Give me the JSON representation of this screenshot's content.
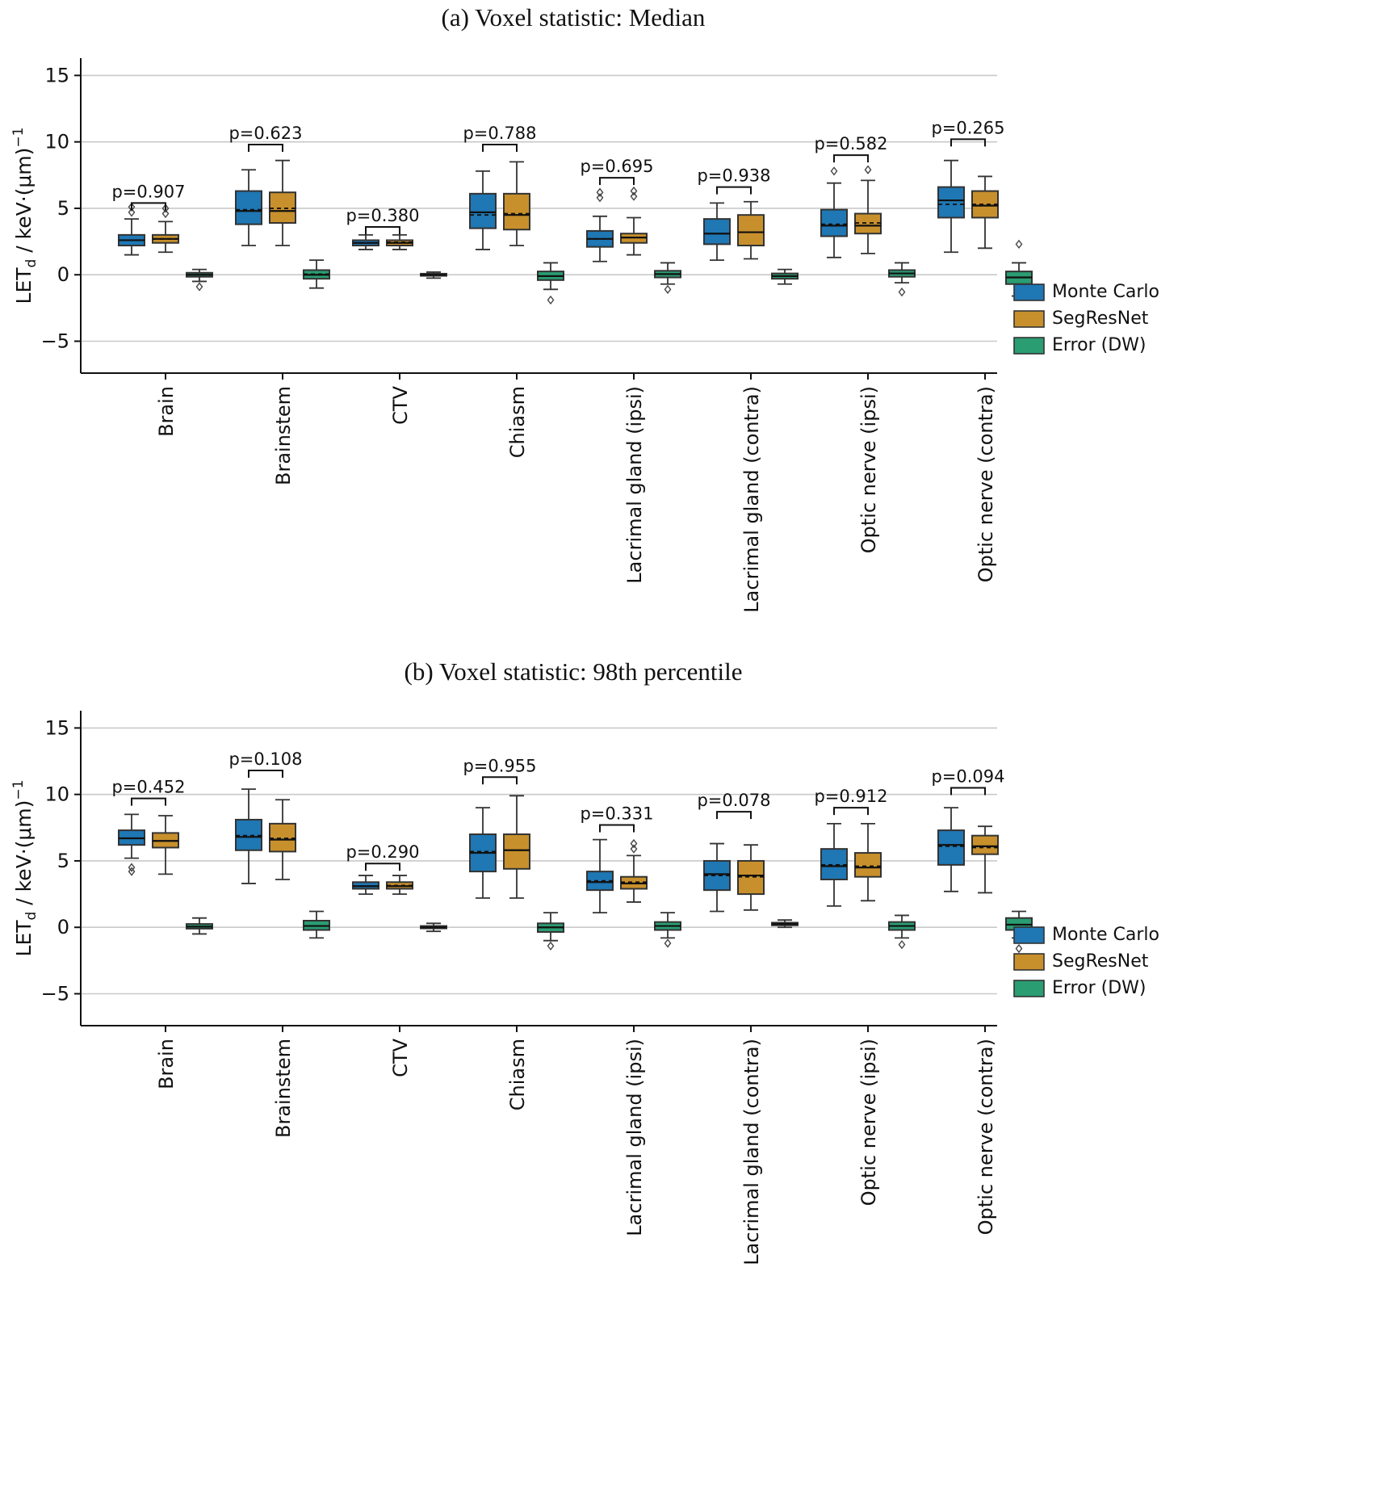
{
  "figure": {
    "background": "#ffffff"
  },
  "colors": {
    "monte_carlo": "#1f77b4",
    "segresnet": "#c8902c",
    "error_dw": "#2a9d72",
    "grid": "#c9c9c9",
    "box_edge": "#333333"
  },
  "chart_data": [
    {
      "type": "box",
      "panel": "a",
      "title": "(a) Voxel statistic: Median",
      "ylabel_parts": [
        {
          "t": "LET"
        },
        {
          "t": "d",
          "pos": "sub"
        },
        {
          "t": " / keV·(μm)"
        },
        {
          "t": "−1",
          "pos": "sup"
        }
      ],
      "ylim": [
        -7.4,
        16.3
      ],
      "yticks": [
        -5,
        0,
        5,
        10,
        15
      ],
      "grid": true,
      "legend_position": "right",
      "categories": [
        "Brain",
        "Brainstem",
        "CTV",
        "Chiasm",
        "Lacrimal gland (ipsi)",
        "Lacrimal gland (contra)",
        "Optic nerve (ipsi)",
        "Optic nerve (contra)"
      ],
      "series": [
        {
          "name": "Monte Carlo",
          "color": "#1f77b4",
          "boxes": [
            {
              "lo": 1.5,
              "q1": 2.2,
              "med": 2.6,
              "mean": 2.6,
              "q3": 3.0,
              "hi": 4.2,
              "fliers": [
                4.7,
                5.1
              ]
            },
            {
              "lo": 2.2,
              "q1": 3.8,
              "med": 4.8,
              "mean": 4.9,
              "q3": 6.3,
              "hi": 7.9,
              "fliers": []
            },
            {
              "lo": 1.9,
              "q1": 2.2,
              "med": 2.4,
              "mean": 2.4,
              "q3": 2.6,
              "hi": 3.0,
              "fliers": []
            },
            {
              "lo": 1.9,
              "q1": 3.5,
              "med": 4.7,
              "mean": 4.5,
              "q3": 6.1,
              "hi": 7.8,
              "fliers": []
            },
            {
              "lo": 1.0,
              "q1": 2.1,
              "med": 2.7,
              "mean": 2.7,
              "q3": 3.3,
              "hi": 4.4,
              "fliers": [
                5.8,
                6.2
              ]
            },
            {
              "lo": 1.1,
              "q1": 2.3,
              "med": 3.1,
              "mean": 3.1,
              "q3": 4.2,
              "hi": 5.4,
              "fliers": []
            },
            {
              "lo": 1.3,
              "q1": 2.9,
              "med": 3.7,
              "mean": 3.8,
              "q3": 4.9,
              "hi": 6.9,
              "fliers": [
                7.8
              ]
            },
            {
              "lo": 1.7,
              "q1": 4.3,
              "med": 5.6,
              "mean": 5.3,
              "q3": 6.6,
              "hi": 8.6,
              "fliers": []
            }
          ]
        },
        {
          "name": "SegResNet",
          "color": "#c8902c",
          "boxes": [
            {
              "lo": 1.7,
              "q1": 2.4,
              "med": 2.7,
              "mean": 2.7,
              "q3": 3.0,
              "hi": 4.0,
              "fliers": [
                4.6,
                5.0
              ]
            },
            {
              "lo": 2.2,
              "q1": 3.9,
              "med": 4.8,
              "mean": 5.0,
              "q3": 6.2,
              "hi": 8.6,
              "fliers": []
            },
            {
              "lo": 1.9,
              "q1": 2.2,
              "med": 2.4,
              "mean": 2.45,
              "q3": 2.6,
              "hi": 3.0,
              "fliers": []
            },
            {
              "lo": 2.2,
              "q1": 3.4,
              "med": 4.5,
              "mean": 4.6,
              "q3": 6.1,
              "hi": 8.5,
              "fliers": []
            },
            {
              "lo": 1.5,
              "q1": 2.4,
              "med": 2.8,
              "mean": 2.8,
              "q3": 3.1,
              "hi": 4.3,
              "fliers": [
                5.9,
                6.3
              ]
            },
            {
              "lo": 1.2,
              "q1": 2.2,
              "med": 3.2,
              "mean": 3.2,
              "q3": 4.5,
              "hi": 5.5,
              "fliers": []
            },
            {
              "lo": 1.6,
              "q1": 3.1,
              "med": 3.7,
              "mean": 3.9,
              "q3": 4.6,
              "hi": 7.1,
              "fliers": [
                7.9
              ]
            },
            {
              "lo": 2.0,
              "q1": 4.3,
              "med": 5.2,
              "mean": 5.3,
              "q3": 6.3,
              "hi": 7.4,
              "fliers": []
            }
          ]
        },
        {
          "name": "Error (DW)",
          "color": "#2a9d72",
          "boxes": [
            {
              "lo": -0.5,
              "q1": -0.15,
              "med": 0.0,
              "mean": 0.0,
              "q3": 0.15,
              "hi": 0.4,
              "fliers": [
                -0.9
              ]
            },
            {
              "lo": -1.0,
              "q1": -0.3,
              "med": 0.0,
              "mean": 0.05,
              "q3": 0.35,
              "hi": 1.1,
              "fliers": []
            },
            {
              "lo": -0.25,
              "q1": -0.08,
              "med": 0.0,
              "mean": 0.0,
              "q3": 0.08,
              "hi": 0.2,
              "fliers": []
            },
            {
              "lo": -1.1,
              "q1": -0.4,
              "med": -0.1,
              "mean": -0.1,
              "q3": 0.25,
              "hi": 0.9,
              "fliers": [
                -1.9
              ]
            },
            {
              "lo": -0.7,
              "q1": -0.2,
              "med": 0.05,
              "mean": 0.05,
              "q3": 0.3,
              "hi": 0.9,
              "fliers": [
                -1.1
              ]
            },
            {
              "lo": -0.7,
              "q1": -0.3,
              "med": -0.1,
              "mean": -0.1,
              "q3": 0.1,
              "hi": 0.4,
              "fliers": []
            },
            {
              "lo": -0.6,
              "q1": -0.15,
              "med": 0.1,
              "mean": 0.1,
              "q3": 0.35,
              "hi": 0.9,
              "fliers": [
                -1.3
              ]
            },
            {
              "lo": -1.6,
              "q1": -0.7,
              "med": -0.2,
              "mean": -0.2,
              "q3": 0.25,
              "hi": 0.9,
              "fliers": [
                2.3
              ]
            }
          ]
        }
      ],
      "pvalues": [
        {
          "label": "p=0.907",
          "y": 5.4
        },
        {
          "label": "p=0.623",
          "y": 9.8
        },
        {
          "label": "p=0.380",
          "y": 3.6
        },
        {
          "label": "p=0.788",
          "y": 9.8
        },
        {
          "label": "p=0.695",
          "y": 7.3
        },
        {
          "label": "p=0.938",
          "y": 6.6
        },
        {
          "label": "p=0.582",
          "y": 9.0
        },
        {
          "label": "p=0.265",
          "y": 10.2
        }
      ]
    },
    {
      "type": "box",
      "panel": "b",
      "title": "(b) Voxel statistic: 98th percentile",
      "ylabel_parts": [
        {
          "t": "LET"
        },
        {
          "t": "d",
          "pos": "sub"
        },
        {
          "t": " / keV·(μm)"
        },
        {
          "t": "−1",
          "pos": "sup"
        }
      ],
      "ylim": [
        -7.4,
        16.3
      ],
      "yticks": [
        -5,
        0,
        5,
        10,
        15
      ],
      "grid": true,
      "legend_position": "right",
      "categories": [
        "Brain",
        "Brainstem",
        "CTV",
        "Chiasm",
        "Lacrimal gland (ipsi)",
        "Lacrimal gland (contra)",
        "Optic nerve (ipsi)",
        "Optic nerve (contra)"
      ],
      "series": [
        {
          "name": "Monte Carlo",
          "color": "#1f77b4",
          "boxes": [
            {
              "lo": 5.2,
              "q1": 6.2,
              "med": 6.7,
              "mean": 6.7,
              "q3": 7.3,
              "hi": 8.5,
              "fliers": [
                4.2,
                4.5
              ]
            },
            {
              "lo": 3.3,
              "q1": 5.8,
              "med": 6.8,
              "mean": 6.9,
              "q3": 8.1,
              "hi": 10.4,
              "fliers": []
            },
            {
              "lo": 2.5,
              "q1": 2.9,
              "med": 3.1,
              "mean": 3.1,
              "q3": 3.4,
              "hi": 3.9,
              "fliers": []
            },
            {
              "lo": 2.2,
              "q1": 4.2,
              "med": 5.6,
              "mean": 5.7,
              "q3": 7.0,
              "hi": 9.0,
              "fliers": []
            },
            {
              "lo": 1.1,
              "q1": 2.8,
              "med": 3.4,
              "mean": 3.5,
              "q3": 4.2,
              "hi": 6.6,
              "fliers": []
            },
            {
              "lo": 1.2,
              "q1": 2.8,
              "med": 4.0,
              "mean": 3.9,
              "q3": 5.0,
              "hi": 6.3,
              "fliers": []
            },
            {
              "lo": 1.6,
              "q1": 3.6,
              "med": 4.6,
              "mean": 4.7,
              "q3": 5.9,
              "hi": 7.8,
              "fliers": []
            },
            {
              "lo": 2.7,
              "q1": 4.7,
              "med": 6.2,
              "mean": 6.1,
              "q3": 7.3,
              "hi": 9.0,
              "fliers": []
            }
          ]
        },
        {
          "name": "SegResNet",
          "color": "#c8902c",
          "boxes": [
            {
              "lo": 4.0,
              "q1": 6.0,
              "med": 6.5,
              "mean": 6.5,
              "q3": 7.1,
              "hi": 8.4,
              "fliers": []
            },
            {
              "lo": 3.6,
              "q1": 5.7,
              "med": 6.6,
              "mean": 6.7,
              "q3": 7.8,
              "hi": 9.6,
              "fliers": []
            },
            {
              "lo": 2.5,
              "q1": 2.9,
              "med": 3.1,
              "mean": 3.15,
              "q3": 3.4,
              "hi": 3.9,
              "fliers": []
            },
            {
              "lo": 2.2,
              "q1": 4.4,
              "med": 5.8,
              "mean": 5.8,
              "q3": 7.0,
              "hi": 9.9,
              "fliers": []
            },
            {
              "lo": 1.9,
              "q1": 2.9,
              "med": 3.3,
              "mean": 3.4,
              "q3": 3.8,
              "hi": 5.4,
              "fliers": [
                5.9,
                6.3
              ]
            },
            {
              "lo": 1.3,
              "q1": 2.5,
              "med": 3.9,
              "mean": 3.8,
              "q3": 5.0,
              "hi": 6.2,
              "fliers": []
            },
            {
              "lo": 2.0,
              "q1": 3.8,
              "med": 4.5,
              "mean": 4.6,
              "q3": 5.6,
              "hi": 7.8,
              "fliers": []
            },
            {
              "lo": 2.6,
              "q1": 5.5,
              "med": 6.1,
              "mean": 6.0,
              "q3": 6.9,
              "hi": 7.6,
              "fliers": []
            }
          ]
        },
        {
          "name": "Error (DW)",
          "color": "#2a9d72",
          "boxes": [
            {
              "lo": -0.5,
              "q1": -0.1,
              "med": 0.05,
              "mean": 0.05,
              "q3": 0.25,
              "hi": 0.7,
              "fliers": []
            },
            {
              "lo": -0.8,
              "q1": -0.2,
              "med": 0.1,
              "mean": 0.1,
              "q3": 0.5,
              "hi": 1.2,
              "fliers": []
            },
            {
              "lo": -0.3,
              "q1": -0.08,
              "med": 0.0,
              "mean": 0.0,
              "q3": 0.1,
              "hi": 0.3,
              "fliers": []
            },
            {
              "lo": -1.0,
              "q1": -0.35,
              "med": 0.0,
              "mean": 0.0,
              "q3": 0.3,
              "hi": 1.1,
              "fliers": [
                -1.4
              ]
            },
            {
              "lo": -0.8,
              "q1": -0.2,
              "med": 0.1,
              "mean": 0.1,
              "q3": 0.4,
              "hi": 1.1,
              "fliers": [
                -1.2
              ]
            },
            {
              "lo": 0.0,
              "q1": 0.15,
              "med": 0.25,
              "mean": 0.25,
              "q3": 0.35,
              "hi": 0.55,
              "fliers": []
            },
            {
              "lo": -0.8,
              "q1": -0.2,
              "med": 0.1,
              "mean": 0.1,
              "q3": 0.4,
              "hi": 0.9,
              "fliers": [
                -1.3
              ]
            },
            {
              "lo": -0.8,
              "q1": -0.2,
              "med": 0.2,
              "mean": 0.2,
              "q3": 0.7,
              "hi": 1.2,
              "fliers": [
                -1.6
              ]
            }
          ]
        }
      ],
      "pvalues": [
        {
          "label": "p=0.452",
          "y": 9.7
        },
        {
          "label": "p=0.108",
          "y": 11.8
        },
        {
          "label": "p=0.290",
          "y": 4.8
        },
        {
          "label": "p=0.955",
          "y": 11.3
        },
        {
          "label": "p=0.331",
          "y": 7.7
        },
        {
          "label": "p=0.078",
          "y": 8.7
        },
        {
          "label": "p=0.912",
          "y": 9.0
        },
        {
          "label": "p=0.094",
          "y": 10.5
        }
      ]
    }
  ]
}
